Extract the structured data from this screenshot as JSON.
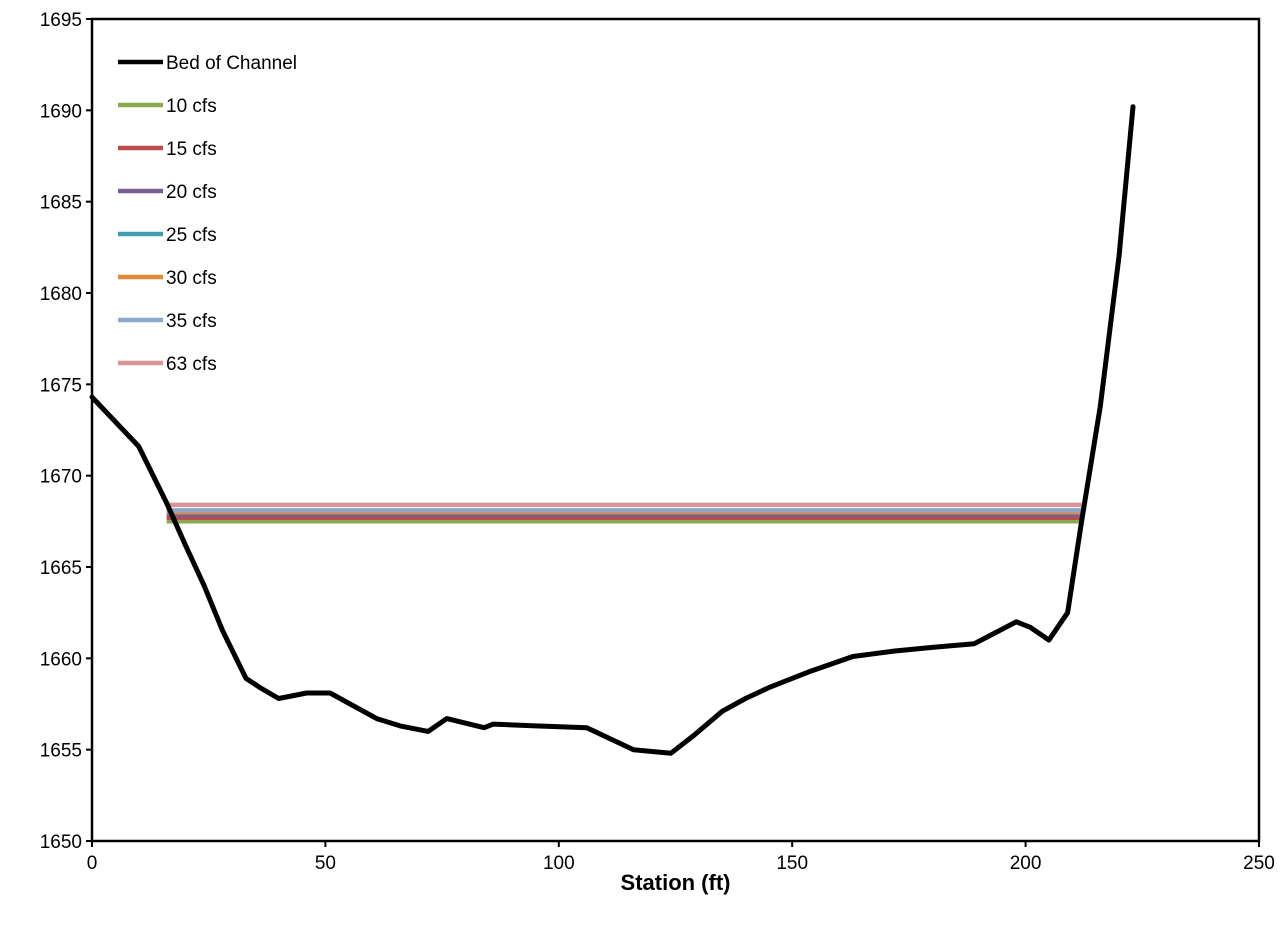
{
  "chart_data": {
    "type": "line",
    "title": "",
    "xlabel": "Station (ft)",
    "ylabel": "",
    "xlim": [
      0,
      250
    ],
    "ylim": [
      1650,
      1695
    ],
    "xticks": [
      0,
      50,
      100,
      150,
      200,
      250
    ],
    "yticks": [
      1650,
      1655,
      1660,
      1665,
      1670,
      1675,
      1680,
      1685,
      1690,
      1695
    ],
    "grid": false,
    "legend_position": "top-left",
    "series": [
      {
        "name": "Bed of Channel",
        "color": "#000000",
        "points": [
          [
            0,
            1674.3
          ],
          [
            10,
            1671.6
          ],
          [
            16,
            1668.5
          ],
          [
            20,
            1666.2
          ],
          [
            24,
            1664.0
          ],
          [
            28,
            1661.5
          ],
          [
            33,
            1658.9
          ],
          [
            36,
            1658.4
          ],
          [
            40,
            1657.8
          ],
          [
            46,
            1658.1
          ],
          [
            51,
            1658.1
          ],
          [
            56,
            1657.4
          ],
          [
            61,
            1656.7
          ],
          [
            66,
            1656.3
          ],
          [
            72,
            1656.0
          ],
          [
            76,
            1656.7
          ],
          [
            84,
            1656.2
          ],
          [
            86,
            1656.4
          ],
          [
            95,
            1656.3
          ],
          [
            106,
            1656.2
          ],
          [
            111,
            1655.6
          ],
          [
            116,
            1655.0
          ],
          [
            120,
            1654.9
          ],
          [
            124,
            1654.8
          ],
          [
            129,
            1655.8
          ],
          [
            135,
            1657.1
          ],
          [
            140,
            1657.8
          ],
          [
            145,
            1658.4
          ],
          [
            154,
            1659.3
          ],
          [
            163,
            1660.1
          ],
          [
            172,
            1660.4
          ],
          [
            180,
            1660.6
          ],
          [
            189,
            1660.8
          ],
          [
            198,
            1662.0
          ],
          [
            201,
            1661.7
          ],
          [
            205,
            1661.0
          ],
          [
            209,
            1662.5
          ],
          [
            212,
            1667.5
          ],
          [
            216,
            1673.8
          ],
          [
            220,
            1682.0
          ],
          [
            223,
            1690.2
          ]
        ]
      },
      {
        "name": "10 cfs",
        "color": "#8aaa4f",
        "points": [
          [
            16,
            1667.5
          ],
          [
            212,
            1667.5
          ]
        ]
      },
      {
        "name": "15 cfs",
        "color": "#bc4b4a",
        "points": [
          [
            16,
            1667.7
          ],
          [
            212,
            1667.7
          ]
        ]
      },
      {
        "name": "20 cfs",
        "color": "#7a5f97",
        "points": [
          [
            16,
            1667.85
          ],
          [
            212,
            1667.85
          ]
        ]
      },
      {
        "name": "25 cfs",
        "color": "#3f9cb3",
        "points": [
          [
            16,
            1668.0
          ],
          [
            212,
            1668.0
          ]
        ]
      },
      {
        "name": "30 cfs",
        "color": "#e08a35",
        "points": [
          [
            16,
            1668.0
          ],
          [
            212,
            1668.0
          ]
        ]
      },
      {
        "name": "35 cfs",
        "color": "#8ea8cb",
        "points": [
          [
            16,
            1668.1
          ],
          [
            212,
            1668.1
          ]
        ]
      },
      {
        "name": "63 cfs",
        "color": "#d99594",
        "points": [
          [
            16,
            1668.4
          ],
          [
            212,
            1668.4
          ]
        ]
      }
    ]
  }
}
